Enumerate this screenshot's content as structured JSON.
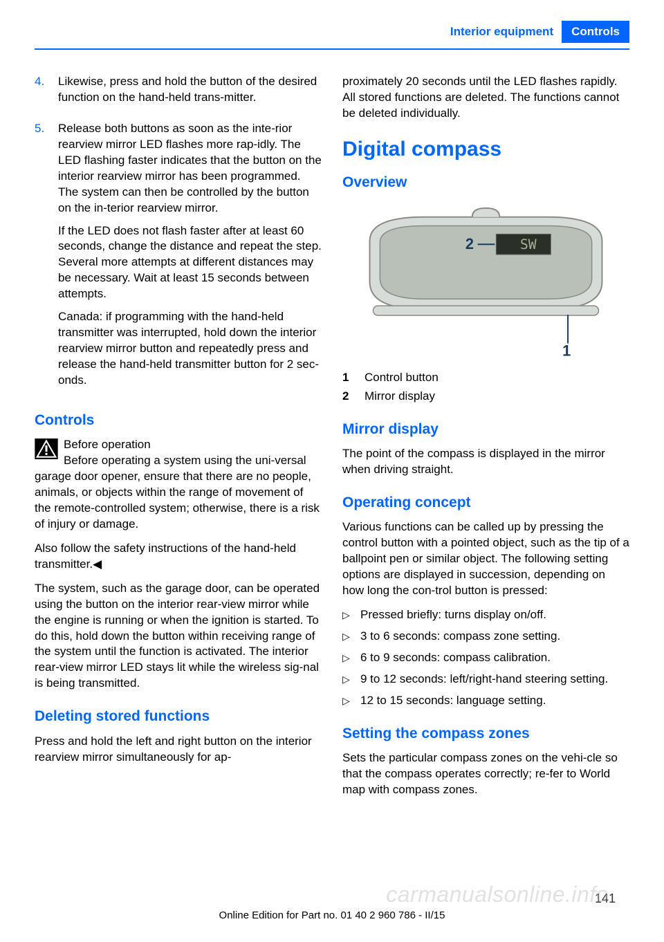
{
  "header": {
    "breadcrumb": "Interior equipment",
    "section": "Controls"
  },
  "left": {
    "items": [
      {
        "num": "4.",
        "paras": [
          "Likewise, press and hold the button of the desired function on the hand-held trans‐mitter."
        ]
      },
      {
        "num": "5.",
        "paras": [
          "Release both buttons as soon as the inte‐rior rearview mirror LED flashes more rap‐idly. The LED flashing faster indicates that the button on the interior rearview mirror has been programmed. The system can then be controlled by the button on the in‐terior rearview mirror.",
          "If the LED does not flash faster after at least 60 seconds, change the distance and repeat the step. Several more attempts at different distances may be necessary. Wait at least 15 seconds between attempts.",
          "Canada: if programming with the hand-held transmitter was interrupted, hold down the interior rearview mirror button and repeatedly press and release the hand-held transmitter button for 2 sec‐onds."
        ]
      }
    ],
    "controls": {
      "heading": "Controls",
      "warn_title": "Before operation",
      "warn_body": "Before operating a system using the uni‐versal garage door opener, ensure that there are no people, animals, or objects within the range of movement of the remote-controlled system; otherwise, there is a risk of injury or damage.",
      "warn_after": "Also follow the safety instructions of the hand-held transmitter.◀",
      "para": "The system, such as the garage door, can be operated using the button on the interior rear‐view mirror while the engine is running or when the ignition is started. To do this, hold down the button within receiving range of the system until the function is activated. The interior rear‐view mirror LED stays lit while the wireless sig‐nal is being transmitted."
    },
    "deleting": {
      "heading": "Deleting stored functions",
      "para": "Press and hold the left and right button on the interior rearview mirror simultaneously for ap‐"
    }
  },
  "right": {
    "continuation": "proximately 20 seconds until the LED flashes rapidly. All stored functions are deleted. The functions cannot be deleted individually.",
    "compass": {
      "heading": "Digital compass",
      "overview": "Overview",
      "diagram": {
        "label2": "2",
        "label1": "1",
        "display_text": "SW",
        "mirror_fill": "#d8dcd8",
        "mirror_stroke": "#888a88",
        "glass_fill": "#b8c0b8",
        "display_bg": "#2a3028",
        "display_fg": "#a8b090",
        "leader_color": "#1a3a5a"
      },
      "defs": [
        {
          "n": "1",
          "t": "Control button"
        },
        {
          "n": "2",
          "t": "Mirror display"
        }
      ],
      "mirror_display": {
        "heading": "Mirror display",
        "para": "The point of the compass is displayed in the mirror when driving straight."
      },
      "operating": {
        "heading": "Operating concept",
        "para": "Various functions can be called up by pressing the control button with a pointed object, such as the tip of a ballpoint pen or similar object. The following setting options are displayed in succession, depending on how long the con‐trol button is pressed:",
        "bullets": [
          "Pressed briefly: turns display on/off.",
          "3 to 6 seconds: compass zone setting.",
          "6 to 9 seconds: compass calibration.",
          "9 to 12 seconds: left/right-hand steering setting.",
          "12 to 15 seconds: language setting."
        ]
      },
      "zones": {
        "heading": "Setting the compass zones",
        "para": "Sets the particular compass zones on the vehi‐cle so that the compass operates correctly; re‐fer to World map with compass zones."
      }
    }
  },
  "footer": {
    "page": "141",
    "line": "Online Edition for Part no. 01 40 2 960 786 - II/15"
  }
}
